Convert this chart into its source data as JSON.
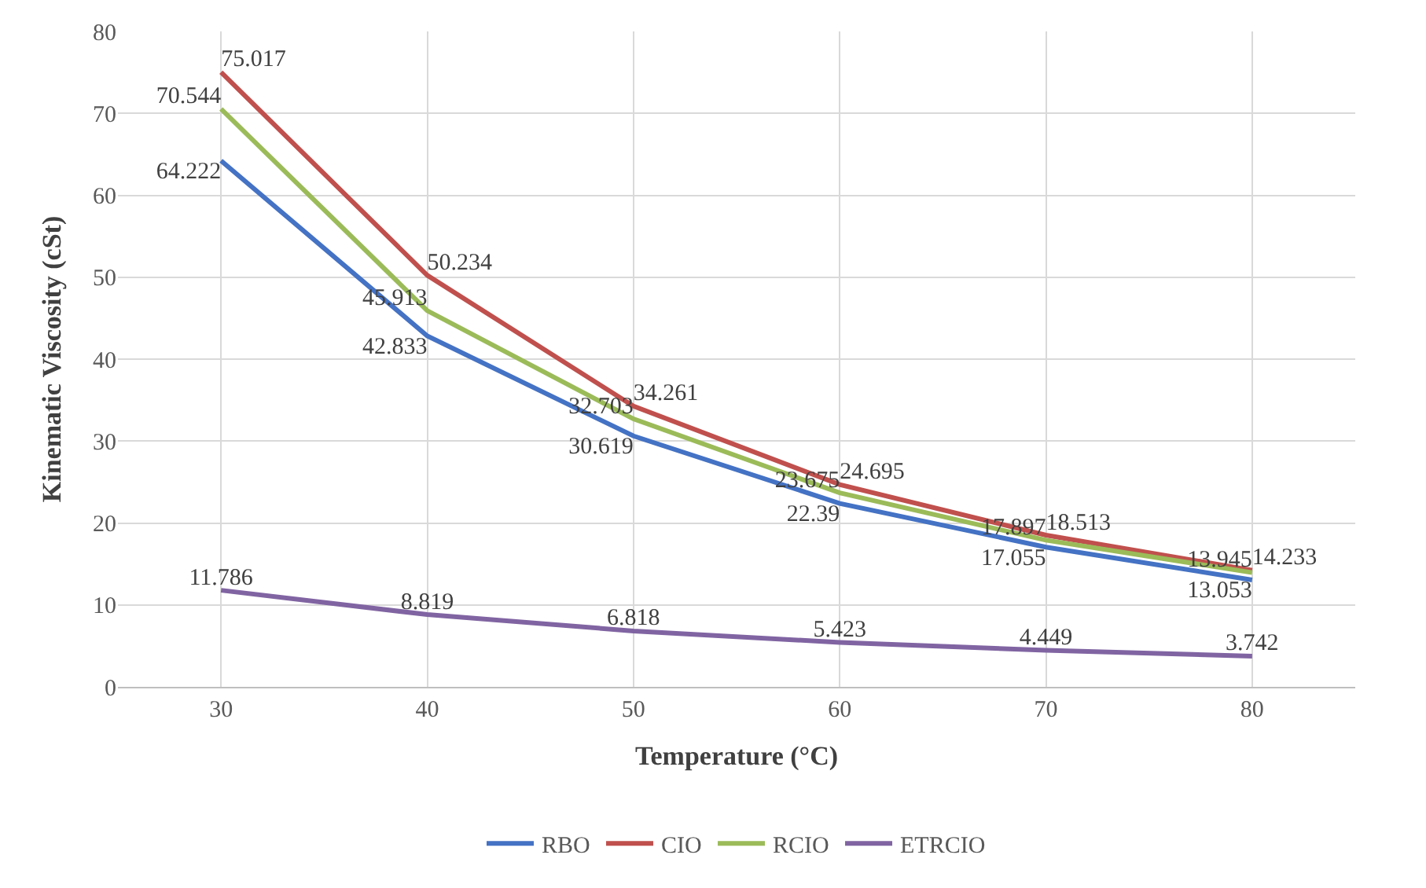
{
  "chart_data": {
    "type": "line",
    "xlabel": "Temperature (°C)",
    "ylabel": "Kinematic Viscosity (cSt)",
    "x": [
      30,
      40,
      50,
      60,
      70,
      80
    ],
    "series": [
      {
        "name": "RBO",
        "color": "#4472c4",
        "values": [
          64.222,
          42.833,
          30.619,
          22.39,
          17.055,
          13.053
        ]
      },
      {
        "name": "CIO",
        "color": "#c0504d",
        "values": [
          75.017,
          50.234,
          34.261,
          24.695,
          18.513,
          14.233
        ]
      },
      {
        "name": "RCIO",
        "color": "#9bbb59",
        "values": [
          70.544,
          45.913,
          32.703,
          23.675,
          17.897,
          13.945
        ]
      },
      {
        "name": "ETRCIO",
        "color": "#8064a2",
        "values": [
          11.786,
          8.819,
          6.818,
          5.423,
          4.449,
          3.742
        ]
      }
    ],
    "xlim": [
      25,
      85
    ],
    "xticks": [
      30,
      40,
      50,
      60,
      70,
      80
    ],
    "ylim": [
      0,
      80
    ],
    "yticks": [
      0,
      10,
      20,
      30,
      40,
      50,
      60,
      70,
      80
    ],
    "grid": true,
    "legend": "bottom",
    "data_labels": true,
    "marker": "none",
    "line_style": "solid"
  }
}
